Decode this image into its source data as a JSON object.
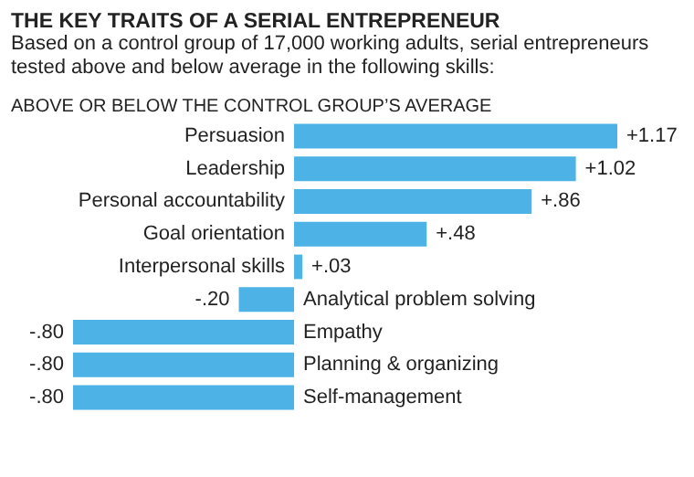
{
  "chart_data": {
    "type": "bar",
    "orientation": "horizontal",
    "title": "THE KEY TRAITS OF A SERIAL ENTREPRENEUR",
    "subtitle": "Based on a control group of 17,000 working adults, serial entrepreneurs tested above and below average in the following skills:",
    "annotations": [
      "ABOVE OR BELOW THE CONTROL GROUP’S AVERAGE"
    ],
    "categories": [
      "Persuasion",
      "Leadership",
      "Personal accountability",
      "Goal orientation",
      "Interpersonal skills",
      "Analytical problem solving",
      "Empathy",
      "Planning & organizing",
      "Self-management"
    ],
    "values": [
      1.17,
      1.02,
      0.86,
      0.48,
      0.03,
      -0.2,
      -0.8,
      -0.8,
      -0.8
    ],
    "value_labels": [
      "+1.17",
      "+1.02",
      "+.86",
      "+.48",
      "+.03",
      "-.20",
      "-.80",
      "-.80",
      "-.80"
    ],
    "color": "#4db3e6"
  }
}
